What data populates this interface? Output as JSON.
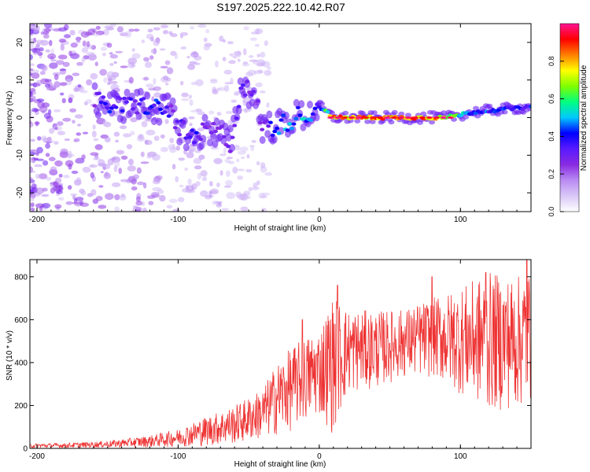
{
  "title": "S197.2025.222.10.42.R07",
  "colors": {
    "line": "#ee3333",
    "colormap": [
      "#ffffff",
      "#d9c8f7",
      "#b98bf2",
      "#8a2be2",
      "#5a1aff",
      "#0000ff",
      "#00c8ff",
      "#00ff80",
      "#7fff00",
      "#ffff00",
      "#ff8000",
      "#ff0000",
      "#ff1493"
    ]
  },
  "chart_data": [
    {
      "type": "heatmap",
      "name": "spectrogram",
      "xlabel": "Height of straight line (km)",
      "ylabel": "Frequency (Hz)",
      "xlim": [
        -205,
        150
      ],
      "ylim": [
        -25,
        25
      ],
      "xticks": [
        -200,
        -100,
        0,
        100
      ],
      "yticks": [
        -20,
        -10,
        0,
        10,
        20
      ],
      "colorbar": {
        "label": "Normalized spectral amplitude",
        "range": [
          0,
          1
        ],
        "ticks": [
          0.0,
          0.2,
          0.4,
          0.6,
          0.8
        ]
      },
      "ridge": [
        {
          "x": -160,
          "f": 4.5,
          "a": 0.3
        },
        {
          "x": -150,
          "f": 3.5,
          "a": 0.45
        },
        {
          "x": -140,
          "f": 3.0,
          "a": 0.4
        },
        {
          "x": -130,
          "f": 3.5,
          "a": 0.4
        },
        {
          "x": -120,
          "f": 3.0,
          "a": 0.45
        },
        {
          "x": -110,
          "f": 2.0,
          "a": 0.45
        },
        {
          "x": -105,
          "f": 1.5,
          "a": 0.35
        },
        {
          "x": -100,
          "f": -2.0,
          "a": 0.35
        },
        {
          "x": -95,
          "f": -4.0,
          "a": 0.4
        },
        {
          "x": -88,
          "f": -6.5,
          "a": 0.45
        },
        {
          "x": -80,
          "f": -3.0,
          "a": 0.3
        },
        {
          "x": -70,
          "f": -4.0,
          "a": 0.3
        },
        {
          "x": -62,
          "f": -7.0,
          "a": 0.35
        },
        {
          "x": -55,
          "f": 9.5,
          "a": 0.35
        },
        {
          "x": -45,
          "f": 4.5,
          "a": 0.3
        },
        {
          "x": -40,
          "f": -2.5,
          "a": 0.3
        },
        {
          "x": -30,
          "f": -2.5,
          "a": 0.5
        },
        {
          "x": -22,
          "f": -1.0,
          "a": 0.55
        },
        {
          "x": -15,
          "f": 0.5,
          "a": 0.55
        },
        {
          "x": -10,
          "f": 0.3,
          "a": 0.55
        },
        {
          "x": 0,
          "f": 3.0,
          "a": 0.4
        },
        {
          "x": 10,
          "f": 0.0,
          "a": 0.95
        },
        {
          "x": 30,
          "f": 0.0,
          "a": 0.95
        },
        {
          "x": 50,
          "f": 0.0,
          "a": 0.95
        },
        {
          "x": 70,
          "f": 0.0,
          "a": 0.95
        },
        {
          "x": 90,
          "f": 0.0,
          "a": 0.9
        },
        {
          "x": 100,
          "f": 0.8,
          "a": 0.6
        },
        {
          "x": 110,
          "f": 1.5,
          "a": 0.5
        },
        {
          "x": 130,
          "f": 2.2,
          "a": 0.45
        },
        {
          "x": 150,
          "f": 2.8,
          "a": 0.45
        }
      ]
    },
    {
      "type": "line",
      "name": "snr",
      "xlabel": "Height of straight line (km)",
      "ylabel": "SNR (10 * v/v)",
      "xlim": [
        -205,
        150
      ],
      "ylim": [
        0,
        880
      ],
      "xticks": [
        -200,
        -100,
        0,
        100
      ],
      "yticks": [
        0,
        200,
        400,
        600,
        800
      ],
      "envelope": [
        {
          "x": -205,
          "lo": 2,
          "hi": 22
        },
        {
          "x": -180,
          "lo": 2,
          "hi": 25
        },
        {
          "x": -150,
          "lo": 3,
          "hi": 35
        },
        {
          "x": -120,
          "lo": 5,
          "hi": 60
        },
        {
          "x": -100,
          "lo": 8,
          "hi": 90
        },
        {
          "x": -80,
          "lo": 10,
          "hi": 150
        },
        {
          "x": -60,
          "lo": 20,
          "hi": 200
        },
        {
          "x": -40,
          "lo": 40,
          "hi": 280
        },
        {
          "x": -30,
          "lo": 60,
          "hi": 400
        },
        {
          "x": -20,
          "lo": 80,
          "hi": 470
        },
        {
          "x": -10,
          "lo": 120,
          "hi": 520
        },
        {
          "x": 0,
          "lo": 150,
          "hi": 560
        },
        {
          "x": 10,
          "lo": 60,
          "hi": 720
        },
        {
          "x": 20,
          "lo": 250,
          "hi": 650
        },
        {
          "x": 40,
          "lo": 280,
          "hi": 640
        },
        {
          "x": 60,
          "lo": 330,
          "hi": 650
        },
        {
          "x": 80,
          "lo": 330,
          "hi": 700
        },
        {
          "x": 100,
          "lo": 250,
          "hi": 750
        },
        {
          "x": 120,
          "lo": 170,
          "hi": 820
        },
        {
          "x": 140,
          "lo": 180,
          "hi": 800
        },
        {
          "x": 150,
          "lo": 200,
          "hi": 850
        }
      ],
      "peaks": [
        {
          "x": -12,
          "y": 600
        },
        {
          "x": 13,
          "y": 760
        },
        {
          "x": 80,
          "y": 800
        },
        {
          "x": 118,
          "y": 820
        },
        {
          "x": 147,
          "y": 880
        }
      ]
    }
  ]
}
